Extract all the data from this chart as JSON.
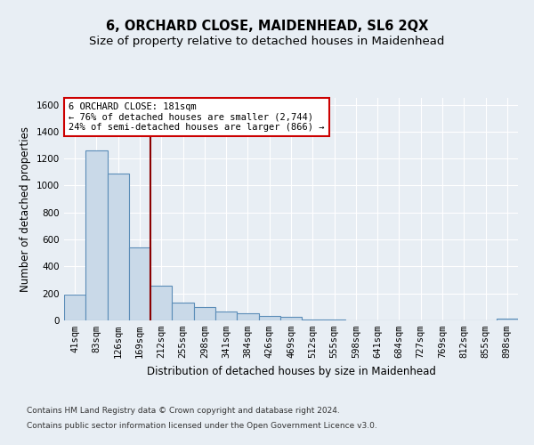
{
  "title": "6, ORCHARD CLOSE, MAIDENHEAD, SL6 2QX",
  "subtitle": "Size of property relative to detached houses in Maidenhead",
  "xlabel": "Distribution of detached houses by size in Maidenhead",
  "ylabel": "Number of detached properties",
  "footer_line1": "Contains HM Land Registry data © Crown copyright and database right 2024.",
  "footer_line2": "Contains public sector information licensed under the Open Government Licence v3.0.",
  "bin_labels": [
    "41sqm",
    "83sqm",
    "126sqm",
    "169sqm",
    "212sqm",
    "255sqm",
    "298sqm",
    "341sqm",
    "384sqm",
    "426sqm",
    "469sqm",
    "512sqm",
    "555sqm",
    "598sqm",
    "641sqm",
    "684sqm",
    "727sqm",
    "769sqm",
    "812sqm",
    "855sqm",
    "898sqm"
  ],
  "bar_values": [
    190,
    1260,
    1090,
    540,
    255,
    130,
    100,
    65,
    55,
    30,
    25,
    5,
    5,
    0,
    0,
    0,
    0,
    0,
    0,
    0,
    10
  ],
  "bar_color": "#c9d9e8",
  "bar_edge_color": "#5b8db8",
  "vline_x_index": 3.5,
  "vline_color": "#8b0000",
  "annotation_line1": "6 ORCHARD CLOSE: 181sqm",
  "annotation_line2": "← 76% of detached houses are smaller (2,744)",
  "annotation_line3": "24% of semi-detached houses are larger (866) →",
  "annotation_box_color": "#ffffff",
  "annotation_box_edge": "#cc0000",
  "ylim": [
    0,
    1650
  ],
  "yticks": [
    0,
    200,
    400,
    600,
    800,
    1000,
    1200,
    1400,
    1600
  ],
  "background_color": "#e8eef4",
  "grid_color": "#ffffff",
  "title_fontsize": 10.5,
  "subtitle_fontsize": 9.5,
  "axis_label_fontsize": 8.5,
  "tick_fontsize": 7.5,
  "footer_fontsize": 6.5
}
